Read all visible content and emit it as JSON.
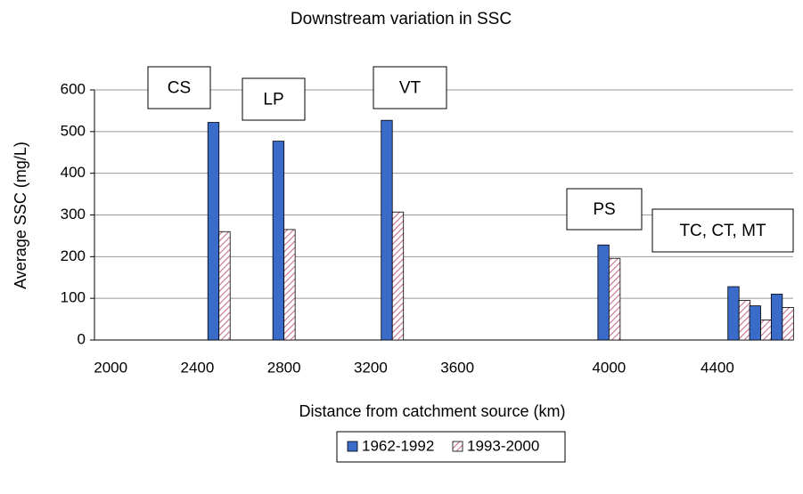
{
  "chart_data": {
    "type": "bar",
    "title": "Downstream variation in SSC",
    "y_label": "Average SSC (mg/L)",
    "x_label": "Distance from catchment source (km)",
    "categories": [
      "2000",
      null,
      null,
      null,
      "2400",
      null,
      null,
      null,
      "2800",
      null,
      null,
      null,
      "3200",
      null,
      null,
      null,
      "3600",
      null,
      null,
      null,
      null,
      null,
      null,
      "4000",
      null,
      null,
      null,
      null,
      "4400",
      null,
      null,
      null
    ],
    "series": [
      {
        "name": "1962-1992",
        "color": "#3a6bc9",
        "values": [
          null,
          null,
          null,
          null,
          null,
          522,
          null,
          null,
          477,
          null,
          null,
          null,
          null,
          527,
          null,
          null,
          null,
          null,
          null,
          null,
          null,
          null,
          null,
          228,
          null,
          null,
          null,
          null,
          null,
          128,
          82,
          110
        ]
      },
      {
        "name": "1993-2000",
        "color": "#d4a0b4",
        "hatch": true,
        "values": [
          null,
          null,
          null,
          null,
          null,
          260,
          null,
          null,
          265,
          null,
          null,
          null,
          null,
          307,
          null,
          null,
          null,
          null,
          null,
          null,
          null,
          null,
          null,
          196,
          null,
          null,
          null,
          null,
          null,
          95,
          48,
          78
        ]
      }
    ],
    "annotations": [
      "CS",
      "LP",
      "VT",
      "PS",
      "TC, CT, MT"
    ],
    "ylim": [
      0,
      600
    ],
    "yticks": [
      0,
      100,
      200,
      300,
      400,
      500,
      600
    ],
    "grid": true,
    "legend": "bottom"
  }
}
